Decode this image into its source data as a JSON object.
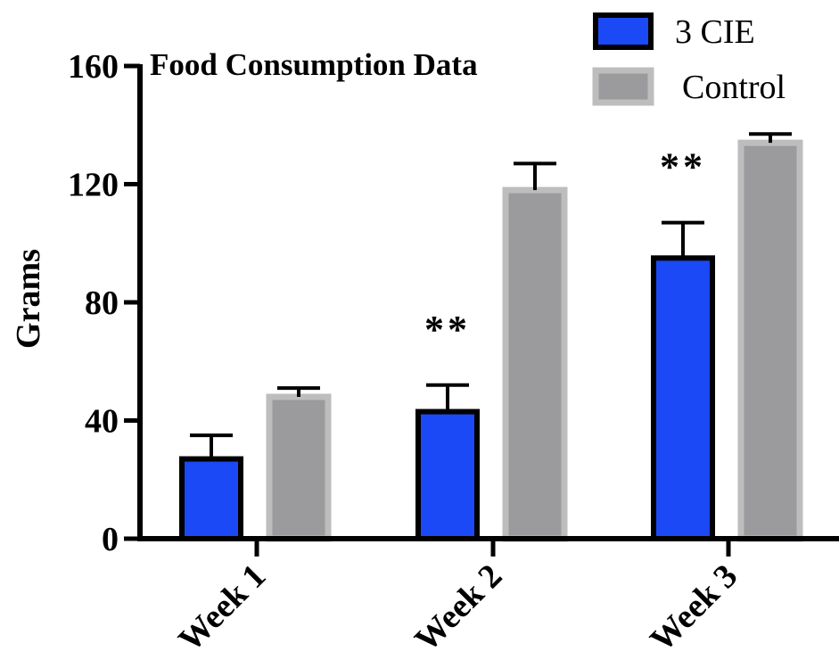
{
  "chart_data": {
    "type": "bar",
    "title": "Food Consumption Data",
    "ylabel": "Grams",
    "xlabel": "",
    "categories": [
      "Week 1",
      "Week 2",
      "Week 3"
    ],
    "ylim": [
      0,
      160
    ],
    "yticks": [
      "0",
      "40",
      "80",
      "120",
      "160"
    ],
    "grid": false,
    "legend_position": "top-right",
    "series": [
      {
        "name": "3 CIE",
        "values": [
          27,
          43,
          95
        ],
        "error": [
          8,
          9,
          12
        ],
        "fill": "#1a49f5",
        "stroke": "#000000"
      },
      {
        "name": "Control",
        "values": [
          48,
          118,
          134
        ],
        "error": [
          3,
          9,
          3
        ],
        "fill": "#9b9b9e",
        "stroke": "#bdbdbd"
      }
    ],
    "annotations": [
      {
        "category": "Week 2",
        "text": "**"
      },
      {
        "category": "Week 3",
        "text": "**"
      }
    ]
  }
}
